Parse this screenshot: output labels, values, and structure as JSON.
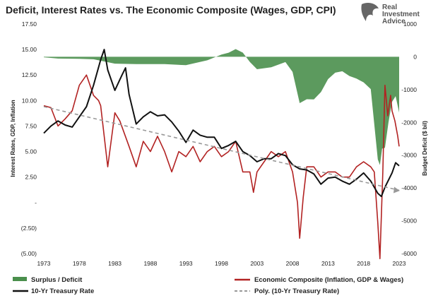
{
  "brand": {
    "line1": "Real",
    "line2": "Investment",
    "line3": "Advice"
  },
  "chart_data": {
    "type": "line",
    "title": "Deficit, Interest Rates vs. The Economic Composite (Wages, GDP, CPI)",
    "ylabel_left": "Interest Rates, GDP, Inflation",
    "ylabel_right": "Budget Deficit ($ bil)",
    "ylim_left": [
      -5,
      17.5
    ],
    "ylim_right": [
      -6000,
      1000
    ],
    "xlim": [
      1973,
      2023
    ],
    "x_ticks": [
      "1973",
      "1978",
      "1983",
      "1988",
      "1993",
      "1998",
      "2003",
      "2008",
      "2013",
      "2018",
      "2023"
    ],
    "y_ticks_left": [
      "17.50",
      "15.00",
      "12.50",
      "10.00",
      "7.50",
      "5.00",
      "2.50",
      "-",
      "(2.50)",
      "(5.00)"
    ],
    "y_ticks_right": [
      "1000",
      "0",
      "-1000",
      "-2000",
      "-3000",
      "-4000",
      "-5000",
      "-6000"
    ],
    "grid": false,
    "legend_position": "bottom",
    "colors": {
      "surplus_deficit": "#4a8f4c",
      "economic_composite": "#b22222",
      "treasury": "#111111",
      "poly": "#999999"
    },
    "series": [
      {
        "name": "Surplus / Deficit",
        "axis": "right",
        "style": "area",
        "x": [
          1973,
          1975,
          1978,
          1980,
          1983,
          1986,
          1990,
          1993,
          1996,
          1998,
          1999,
          2000,
          2001,
          2002,
          2003,
          2005,
          2007,
          2008,
          2009,
          2010,
          2011,
          2012,
          2013,
          2014,
          2015,
          2016,
          2017,
          2018,
          2019,
          2020,
          2020.3,
          2020.6,
          2021,
          2021.5,
          2022,
          2022.5,
          2023
        ],
        "values": [
          -15,
          -53,
          -59,
          -74,
          -208,
          -221,
          -221,
          -255,
          -107,
          69,
          126,
          236,
          128,
          -158,
          -378,
          -318,
          -161,
          -459,
          -1413,
          -1294,
          -1300,
          -1077,
          -680,
          -485,
          -442,
          -585,
          -665,
          -779,
          -984,
          -3132,
          -3300,
          -2800,
          -2775,
          -2000,
          -1375,
          -1200,
          -1700
        ]
      },
      {
        "name": "Economic Composite (Inflation, GDP & Wages)",
        "axis": "left",
        "style": "line",
        "x": [
          1973,
          1974,
          1975,
          1976,
          1977,
          1978,
          1979,
          1980,
          1980.7,
          1981,
          1982,
          1983,
          1983.7,
          1985,
          1986,
          1987,
          1988,
          1989,
          1990,
          1991,
          1992,
          1993,
          1994,
          1995,
          1996,
          1997,
          1998,
          1999,
          2000,
          2001,
          2002,
          2002.5,
          2003,
          2004,
          2005,
          2006,
          2007,
          2008,
          2008.7,
          2009,
          2009.5,
          2010,
          2011,
          2012,
          2013,
          2014,
          2015,
          2016,
          2017,
          2018,
          2019,
          2019.5,
          2020,
          2020.3,
          2020.7,
          2021,
          2021.4,
          2021.8,
          2022,
          2022.4,
          2022.8,
          2023
        ],
        "values": [
          9.5,
          9.3,
          7.5,
          8.2,
          9.0,
          11.5,
          12.5,
          10.5,
          10.0,
          9.5,
          3.5,
          8.8,
          8.0,
          5.5,
          3.5,
          6.0,
          5.0,
          6.5,
          5.0,
          3.0,
          5.0,
          4.5,
          5.5,
          4.0,
          5.0,
          5.5,
          4.5,
          5.0,
          6.0,
          3.0,
          3.0,
          1.0,
          3.0,
          4.0,
          5.0,
          4.5,
          5.0,
          3.0,
          0.0,
          -3.5,
          0.5,
          3.5,
          3.5,
          2.5,
          3.0,
          3.0,
          2.5,
          2.5,
          3.5,
          4.0,
          3.5,
          3.0,
          -2.0,
          -5.5,
          3.0,
          11.5,
          8.5,
          10.5,
          9.0,
          8.0,
          6.5,
          5.5
        ]
      },
      {
        "name": "10-Yr Treasury Rate",
        "axis": "left",
        "style": "line",
        "x": [
          1973,
          1974,
          1975,
          1976,
          1977,
          1978,
          1979,
          1980,
          1981,
          1981.5,
          1982,
          1983,
          1984,
          1984.5,
          1985,
          1986,
          1987,
          1988,
          1989,
          1990,
          1991,
          1992,
          1993,
          1994,
          1995,
          1996,
          1997,
          1998,
          1999,
          2000,
          2001,
          2002,
          2003,
          2004,
          2005,
          2006,
          2007,
          2008,
          2009,
          2010,
          2011,
          2012,
          2013,
          2014,
          2015,
          2016,
          2017,
          2018,
          2019,
          2020,
          2020.5,
          2021,
          2022,
          2022.5,
          2023
        ],
        "values": [
          6.8,
          7.5,
          8.0,
          7.6,
          7.4,
          8.4,
          9.4,
          11.5,
          14.0,
          15.0,
          13.0,
          11.0,
          12.5,
          13.2,
          10.6,
          7.7,
          8.4,
          8.9,
          8.5,
          8.6,
          7.9,
          7.0,
          5.9,
          7.1,
          6.6,
          6.4,
          6.4,
          5.3,
          5.6,
          6.0,
          5.0,
          4.6,
          4.0,
          4.3,
          4.3,
          4.8,
          4.6,
          3.7,
          3.3,
          3.2,
          2.8,
          1.8,
          2.4,
          2.5,
          2.1,
          1.8,
          2.3,
          2.9,
          2.1,
          0.9,
          0.6,
          1.5,
          2.9,
          3.9,
          3.6
        ]
      },
      {
        "name": "Poly. (10-Yr Treasury Rate)",
        "axis": "left",
        "style": "dashed",
        "x": [
          1973,
          2023
        ],
        "values": [
          9.4,
          1.2
        ]
      }
    ]
  }
}
